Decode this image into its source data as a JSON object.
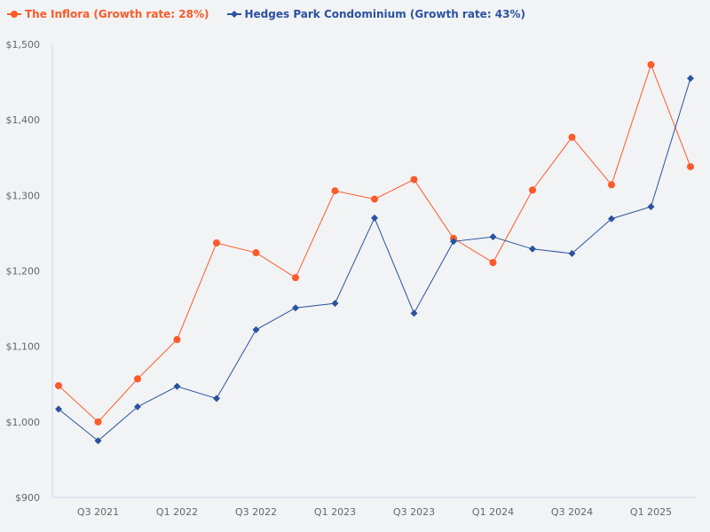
{
  "chart_data": {
    "type": "line",
    "title": "",
    "xlabel": "",
    "ylabel": "",
    "x": [
      "Q2 2021",
      "Q3 2021",
      "Q4 2021",
      "Q1 2022",
      "Q2 2022",
      "Q3 2022",
      "Q4 2022",
      "Q1 2023",
      "Q2 2023",
      "Q3 2023",
      "Q4 2023",
      "Q1 2024",
      "Q2 2024",
      "Q3 2024",
      "Q4 2024",
      "Q1 2025",
      "Q2 2025"
    ],
    "x_tick_labels": [
      "Q3 2021",
      "Q1 2022",
      "Q3 2022",
      "Q1 2023",
      "Q3 2023",
      "Q1 2024",
      "Q3 2024",
      "Q1 2025"
    ],
    "ylim": [
      900,
      1500
    ],
    "y_ticks": [
      900,
      1000,
      1100,
      1200,
      1300,
      1400,
      1500
    ],
    "y_tick_labels": [
      "$900",
      "$1,000",
      "$1,100",
      "$1,200",
      "$1,300",
      "$1,400",
      "$1,500"
    ],
    "grid": false,
    "legend_placement": "top-left",
    "series": [
      {
        "name": "The Inflora (Growth rate: 28%)",
        "color": "#fc5a2a",
        "marker": "circle",
        "values": [
          1048,
          1000,
          1057,
          1109,
          1237,
          1224,
          1191,
          1306,
          1295,
          1321,
          1243,
          1211,
          1307,
          1377,
          1314,
          1473,
          1338
        ]
      },
      {
        "name": "Hedges Park Condominium (Growth rate: 43%)",
        "color": "#2a52a0",
        "marker": "diamond",
        "values": [
          1017,
          975,
          1020,
          1047,
          1031,
          1122,
          1151,
          1157,
          1270,
          1144,
          1239,
          1245,
          1229,
          1223,
          1269,
          1285,
          1455
        ]
      }
    ]
  }
}
